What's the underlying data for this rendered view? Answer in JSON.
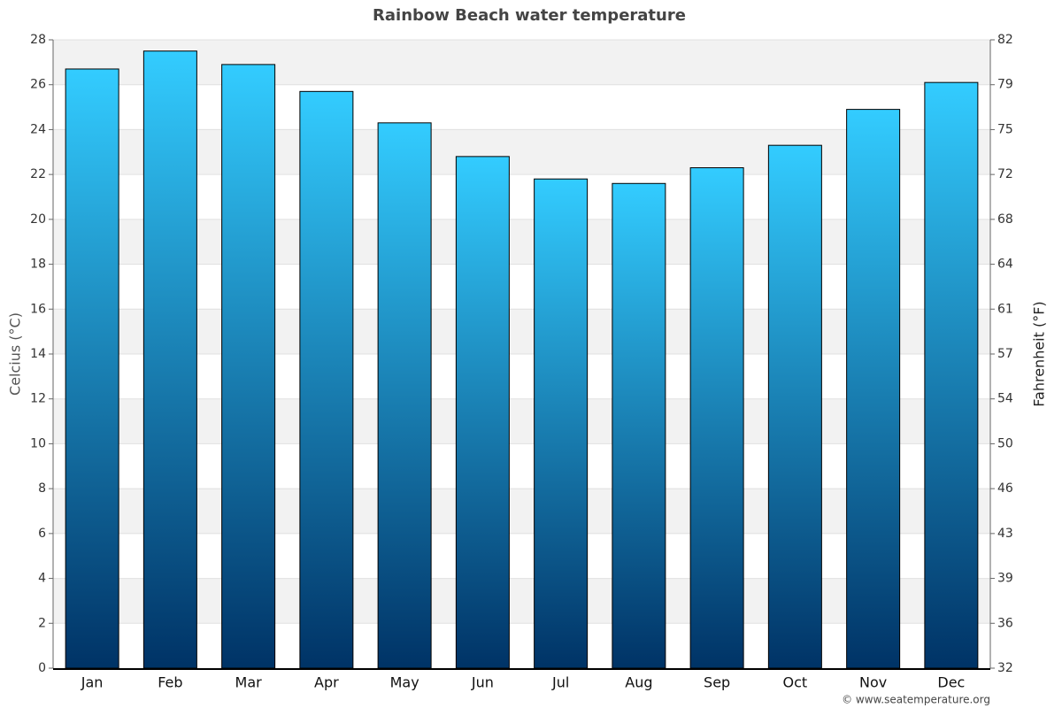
{
  "chart_data": {
    "type": "bar",
    "title": "Rainbow Beach water temperature",
    "categories": [
      "Jan",
      "Feb",
      "Mar",
      "Apr",
      "May",
      "Jun",
      "Jul",
      "Aug",
      "Sep",
      "Oct",
      "Nov",
      "Dec"
    ],
    "values": [
      26.7,
      27.5,
      26.9,
      25.7,
      24.3,
      22.8,
      21.8,
      21.6,
      22.3,
      23.3,
      24.9,
      26.1
    ],
    "color_top": "#33ccff",
    "color_bottom": "#003366",
    "ylabel": "Celcius (°C)",
    "y2label": "Fahrenheit (°F)",
    "ylim": [
      0,
      28
    ],
    "yticks": [
      0,
      2,
      4,
      6,
      8,
      10,
      12,
      14,
      16,
      18,
      20,
      22,
      24,
      26,
      28
    ],
    "y2lim": [
      32,
      82.4
    ],
    "y2ticks": [
      32,
      {
        "value": 35.6,
        "label": "36"
      },
      {
        "value": 39.2,
        "label": "39"
      },
      {
        "value": 42.8,
        "label": "43"
      },
      {
        "value": 46.4,
        "label": "46"
      },
      50,
      {
        "value": 53.6,
        "label": "54"
      },
      {
        "value": 57.2,
        "label": "57"
      },
      {
        "value": 60.8,
        "label": "61"
      },
      {
        "value": 64.4,
        "label": "64"
      },
      68,
      {
        "value": 71.6,
        "label": "72"
      },
      {
        "value": 75.2,
        "label": "75"
      },
      {
        "value": 78.8,
        "label": "79"
      },
      {
        "value": 82.4,
        "label": "82"
      }
    ],
    "grid": true,
    "credit": "© www.seatemperature.org"
  }
}
